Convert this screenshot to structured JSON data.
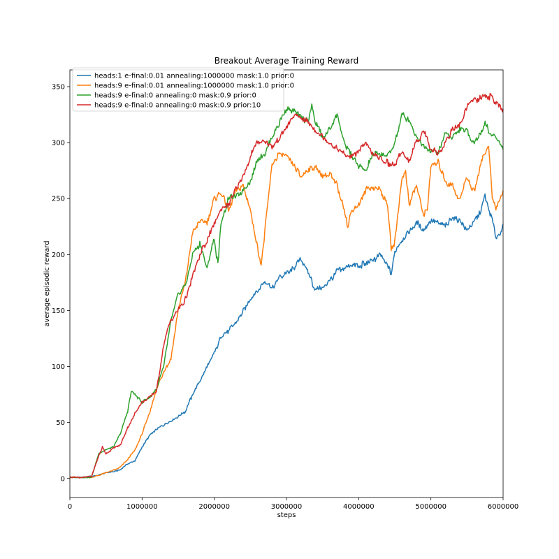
{
  "chart_data": {
    "type": "line",
    "title": "Breakout Average Training Reward",
    "xlabel": "steps",
    "ylabel": "average episodic reward",
    "xlim": [
      0,
      6000000
    ],
    "ylim": [
      -17,
      365
    ],
    "xticks": [
      0,
      1000000,
      2000000,
      3000000,
      4000000,
      5000000,
      6000000
    ],
    "xtick_labels": [
      "0",
      "1000000",
      "2000000",
      "3000000",
      "4000000",
      "5000000",
      "6000000"
    ],
    "yticks": [
      0,
      50,
      100,
      150,
      200,
      250,
      300,
      350
    ],
    "ytick_labels": [
      "0",
      "50",
      "100",
      "150",
      "200",
      "250",
      "300",
      "350"
    ],
    "grid": false,
    "legend_position": "top-left",
    "series": [
      {
        "name": "heads:1  e-final:0.01 annealing:1000000 mask:1.0 prior:0",
        "color": "#1f77b4",
        "x": [
          0,
          200000,
          400000,
          500000,
          600000,
          700000,
          800000,
          900000,
          1000000,
          1100000,
          1200000,
          1300000,
          1400000,
          1500000,
          1600000,
          1700000,
          1800000,
          1900000,
          2000000,
          2100000,
          2200000,
          2300000,
          2400000,
          2500000,
          2600000,
          2700000,
          2800000,
          2900000,
          3000000,
          3100000,
          3200000,
          3300000,
          3400000,
          3500000,
          3600000,
          3700000,
          3800000,
          3900000,
          4000000,
          4100000,
          4200000,
          4300000,
          4400000,
          4450000,
          4500000,
          4600000,
          4700000,
          4800000,
          4900000,
          5000000,
          5100000,
          5200000,
          5300000,
          5400000,
          5500000,
          5600000,
          5700000,
          5750000,
          5800000,
          5850000,
          5900000,
          6000000
        ],
        "y": [
          1,
          1,
          3,
          5,
          6,
          8,
          13,
          16,
          28,
          38,
          44,
          48,
          52,
          55,
          60,
          75,
          87,
          100,
          112,
          127,
          132,
          140,
          150,
          160,
          168,
          175,
          170,
          180,
          183,
          188,
          196,
          185,
          168,
          170,
          177,
          185,
          187,
          191,
          190,
          192,
          195,
          199,
          190,
          183,
          202,
          213,
          220,
          228,
          223,
          230,
          228,
          225,
          233,
          230,
          222,
          230,
          240,
          252,
          240,
          232,
          215,
          225
        ]
      },
      {
        "name": "heads:9  e-final:0.01 annealing:1000000 mask:1.0 prior:0",
        "color": "#ff7f0e",
        "x": [
          0,
          200000,
          300000,
          400000,
          500000,
          600000,
          700000,
          800000,
          900000,
          1000000,
          1100000,
          1200000,
          1300000,
          1400000,
          1500000,
          1600000,
          1700000,
          1800000,
          1900000,
          2000000,
          2100000,
          2200000,
          2300000,
          2400000,
          2500000,
          2600000,
          2650000,
          2700000,
          2800000,
          2900000,
          3000000,
          3100000,
          3200000,
          3300000,
          3400000,
          3500000,
          3600000,
          3700000,
          3800000,
          3850000,
          3900000,
          4000000,
          4100000,
          4200000,
          4300000,
          4400000,
          4450000,
          4500000,
          4600000,
          4650000,
          4700000,
          4800000,
          4900000,
          4950000,
          5000000,
          5100000,
          5200000,
          5300000,
          5400000,
          5500000,
          5600000,
          5700000,
          5750000,
          5800000,
          5850000,
          5900000,
          6000000
        ],
        "y": [
          1,
          1,
          1,
          3,
          5,
          7,
          10,
          17,
          25,
          40,
          58,
          80,
          95,
          107,
          150,
          175,
          220,
          230,
          228,
          250,
          255,
          240,
          258,
          262,
          240,
          205,
          192,
          220,
          280,
          290,
          288,
          280,
          270,
          275,
          278,
          270,
          272,
          262,
          240,
          225,
          238,
          245,
          258,
          260,
          258,
          245,
          205,
          210,
          270,
          275,
          245,
          262,
          235,
          240,
          278,
          282,
          265,
          262,
          248,
          270,
          255,
          285,
          290,
          298,
          250,
          240,
          258
        ]
      },
      {
        "name": "heads:9  e-final:0 annealing:0 mask:0.9 prior:0",
        "color": "#2ca02c",
        "x": [
          0,
          200000,
          300000,
          400000,
          500000,
          600000,
          700000,
          800000,
          850000,
          900000,
          1000000,
          1100000,
          1200000,
          1300000,
          1400000,
          1500000,
          1600000,
          1700000,
          1800000,
          1900000,
          2000000,
          2050000,
          2100000,
          2200000,
          2300000,
          2400000,
          2500000,
          2600000,
          2700000,
          2800000,
          2900000,
          3000000,
          3100000,
          3200000,
          3300000,
          3350000,
          3400000,
          3500000,
          3600000,
          3700000,
          3800000,
          3900000,
          4000000,
          4100000,
          4200000,
          4300000,
          4400000,
          4500000,
          4600000,
          4700000,
          4800000,
          4900000,
          5000000,
          5100000,
          5200000,
          5300000,
          5400000,
          5500000,
          5600000,
          5700000,
          5750000,
          5800000,
          5900000,
          6000000
        ],
        "y": [
          1,
          1,
          1,
          22,
          26,
          28,
          40,
          60,
          78,
          75,
          68,
          72,
          80,
          100,
          140,
          165,
          172,
          200,
          210,
          188,
          215,
          190,
          232,
          250,
          252,
          258,
          265,
          285,
          290,
          305,
          318,
          330,
          328,
          322,
          320,
          332,
          318,
          305,
          312,
          325,
          300,
          288,
          280,
          275,
          290,
          290,
          288,
          300,
          325,
          320,
          305,
          298,
          292,
          290,
          310,
          305,
          312,
          310,
          300,
          310,
          318,
          310,
          305,
          295
        ]
      },
      {
        "name": "heads:9  e-final:0 annealing:0 mask:0.9 prior:10",
        "color": "#d62728",
        "x": [
          0,
          200000,
          300000,
          400000,
          450000,
          500000,
          600000,
          700000,
          800000,
          900000,
          1000000,
          1100000,
          1200000,
          1300000,
          1400000,
          1500000,
          1600000,
          1700000,
          1800000,
          1900000,
          2000000,
          2100000,
          2200000,
          2300000,
          2400000,
          2500000,
          2600000,
          2700000,
          2800000,
          2900000,
          3000000,
          3100000,
          3200000,
          3300000,
          3400000,
          3500000,
          3600000,
          3700000,
          3800000,
          3900000,
          4000000,
          4100000,
          4200000,
          4300000,
          4400000,
          4500000,
          4600000,
          4700000,
          4800000,
          4900000,
          5000000,
          5100000,
          5200000,
          5300000,
          5400000,
          5500000,
          5600000,
          5700000,
          5800000,
          5850000,
          5900000,
          6000000
        ],
        "y": [
          1,
          1,
          2,
          20,
          28,
          22,
          27,
          30,
          45,
          58,
          68,
          72,
          78,
          120,
          142,
          150,
          160,
          180,
          200,
          212,
          228,
          240,
          245,
          258,
          270,
          288,
          300,
          302,
          295,
          305,
          315,
          325,
          322,
          318,
          310,
          305,
          300,
          295,
          290,
          287,
          292,
          300,
          290,
          285,
          282,
          280,
          292,
          285,
          300,
          310,
          295,
          290,
          300,
          312,
          315,
          332,
          338,
          340,
          342,
          340,
          336,
          328
        ]
      }
    ]
  }
}
